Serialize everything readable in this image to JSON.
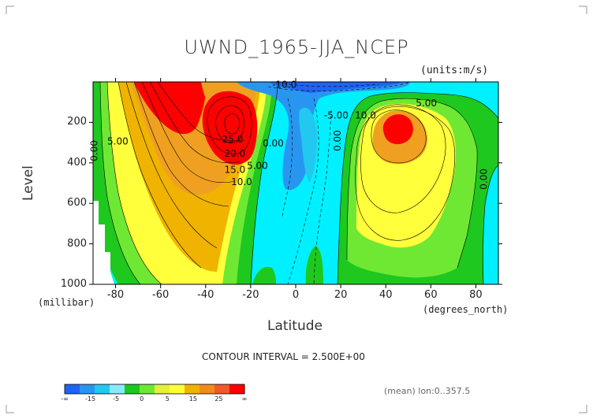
{
  "chart_data": {
    "type": "heatmap",
    "title": "UWND_1965-JJA_NCEP",
    "units": "(units:m/s)",
    "xlabel": "Latitude",
    "ylabel": "Level",
    "x_units": "(degrees_north)",
    "y_units": "(millibar)",
    "xlim": [
      -90,
      90
    ],
    "ylim": [
      1000,
      0
    ],
    "x_ticks": [
      "-80",
      "-60",
      "-40",
      "-20",
      "0",
      "20",
      "40",
      "60",
      "80"
    ],
    "x_tick_values": [
      -80,
      -60,
      -40,
      -20,
      0,
      20,
      40,
      60,
      80
    ],
    "y_ticks": [
      "200",
      "400",
      "600",
      "800",
      "1000"
    ],
    "y_tick_values": [
      200,
      400,
      600,
      800,
      1000
    ],
    "contour_interval_text": "CONTOUR INTERVAL = 2.500E+00",
    "footer_text": "(mean) lon:0..357.5",
    "contour_labels": [
      {
        "text": "0.00",
        "lat": -88,
        "lev": 340
      },
      {
        "text": "5.00",
        "lat": -79,
        "lev": 310
      },
      {
        "text": "25.0",
        "lat": -28,
        "lev": 300
      },
      {
        "text": "20.0",
        "lat": -27,
        "lev": 370
      },
      {
        "text": "15.0",
        "lat": -27,
        "lev": 450
      },
      {
        "text": "10.0",
        "lat": -24,
        "lev": 510
      },
      {
        "text": "5.00",
        "lat": -17,
        "lev": 430
      },
      {
        "text": "0.00",
        "lat": -10,
        "lev": 320
      },
      {
        "text": "-10.0",
        "lat": -5,
        "lev": 30
      },
      {
        "text": "-5.00",
        "lat": 18,
        "lev": 180
      },
      {
        "text": "0.00",
        "lat": 20,
        "lev": 290
      },
      {
        "text": "10.0",
        "lat": 31,
        "lev": 180
      },
      {
        "text": "5.00",
        "lat": 58,
        "lev": 120
      },
      {
        "text": "0.00",
        "lat": 85,
        "lev": 480
      }
    ],
    "colorbar": {
      "labels": [
        "-∞",
        "-15",
        "-5",
        "0",
        "5",
        "15",
        "25",
        "∞"
      ],
      "colors": [
        "#1e64f0",
        "#2896f0",
        "#22c8f0",
        "#88eaff",
        "#1ec81e",
        "#6fe834",
        "#e6f03c",
        "#ffff3c",
        "#f0b400",
        "#f08c1e",
        "#f05a28",
        "#ff0000"
      ]
    },
    "fill_colors": {
      "deep_blue": "#1e64f0",
      "blue": "#2896f0",
      "cyan": "#22c8f0",
      "light_cyan": "#00f0ff",
      "green": "#1ec81e",
      "light_green": "#6fe834",
      "yellow": "#ffff3c",
      "light_orange": "#f0b400",
      "orange": "#f0a020",
      "red": "#ff0000"
    }
  }
}
